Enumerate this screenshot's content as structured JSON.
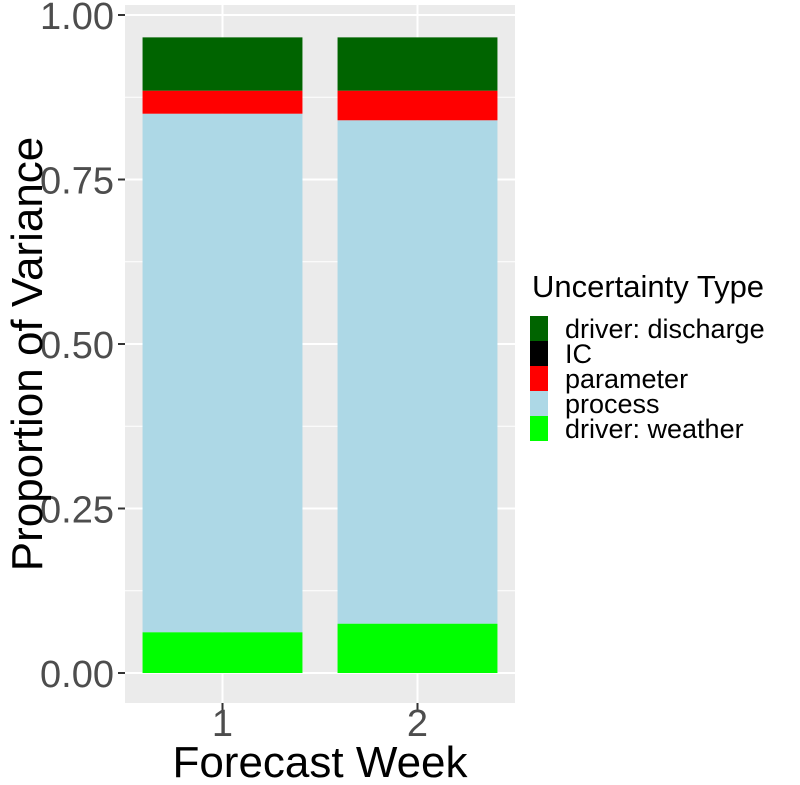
{
  "chart_data": {
    "type": "bar",
    "stacked": true,
    "categories": [
      "1",
      "2"
    ],
    "series": [
      {
        "name": "driver: weather",
        "color": "#00ff00",
        "values": [
          0.062,
          0.075
        ]
      },
      {
        "name": "process",
        "color": "#add8e6",
        "values": [
          0.788,
          0.765
        ]
      },
      {
        "name": "parameter",
        "color": "#ff0000",
        "values": [
          0.035,
          0.045
        ]
      },
      {
        "name": "IC",
        "color": "#000000",
        "values": [
          0.0,
          0.0
        ]
      },
      {
        "name": "driver: discharge",
        "color": "#006400",
        "values": [
          0.081,
          0.081
        ]
      }
    ],
    "xlabel": "Forecast Week",
    "ylabel": "Proportion of Variance",
    "ylim": [
      -0.045,
      1.005
    ],
    "yticks": [
      0.0,
      0.25,
      0.5,
      0.75,
      1.0
    ],
    "ytick_labels": [
      "0.00",
      "0.25",
      "0.50",
      "0.75",
      "1.00"
    ],
    "grid": true,
    "panel_background": "#ebebeb",
    "legend": {
      "title": "Uncertainty Type",
      "position": "right",
      "entries": [
        "driver: discharge",
        "IC",
        "parameter",
        "process",
        "driver: weather"
      ]
    }
  }
}
